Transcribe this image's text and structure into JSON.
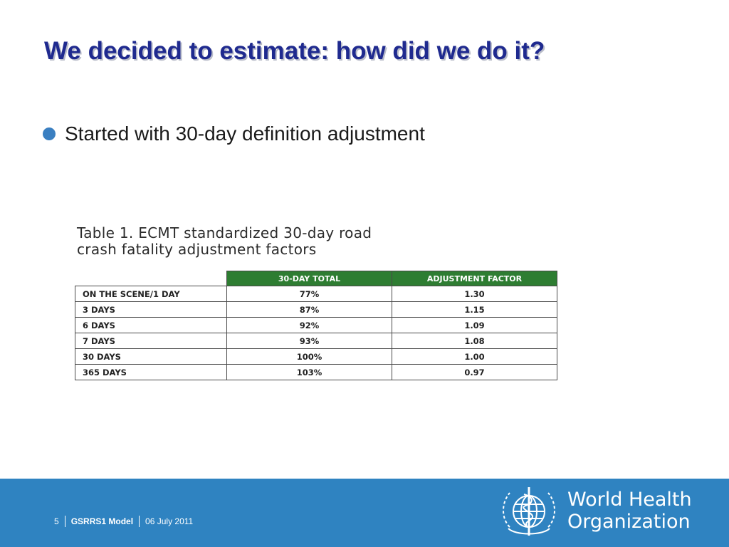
{
  "slide": {
    "title": "We decided to estimate: how did we do it?",
    "bullets": [
      "Started with 30-day definition adjustment"
    ]
  },
  "table": {
    "caption": "Table 1. ECMT standardized 30-day road\ncrash fatality adjustment factors",
    "headers": [
      "",
      "30-DAY TOTAL",
      "ADJUSTMENT FACTOR"
    ],
    "rows": [
      [
        "ON THE SCENE/1 DAY",
        "77%",
        "1.30"
      ],
      [
        "3 DAYS",
        "87%",
        "1.15"
      ],
      [
        "6 DAYS",
        "92%",
        "1.09"
      ],
      [
        "7 DAYS",
        "93%",
        "1.08"
      ],
      [
        "30 DAYS",
        "100%",
        "1.00"
      ],
      [
        "365 DAYS",
        "103%",
        "0.97"
      ]
    ]
  },
  "footer": {
    "page_number": "5",
    "model_name": "GSRRS1 Model",
    "date": "06 July 2011",
    "organization": "World Health\nOrganization",
    "logo_icon": "who-emblem-icon"
  },
  "colors": {
    "title": "#1f2a8f",
    "bullet": "#3a7fc1",
    "table_header": "#2e7d32",
    "footer_bar": "#2f83c1"
  }
}
